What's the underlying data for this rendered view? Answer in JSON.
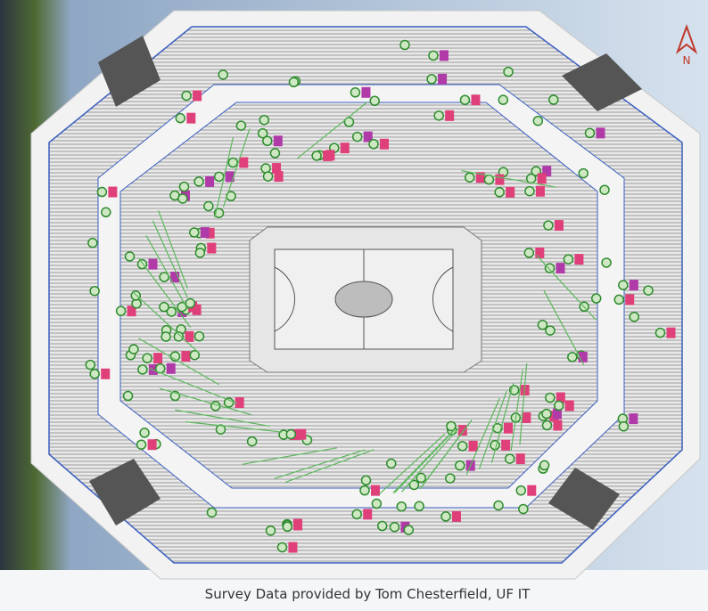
{
  "map": {
    "north_label": "N",
    "caption": "Survey Data provided by Tom Chesterfield, UF IT"
  }
}
